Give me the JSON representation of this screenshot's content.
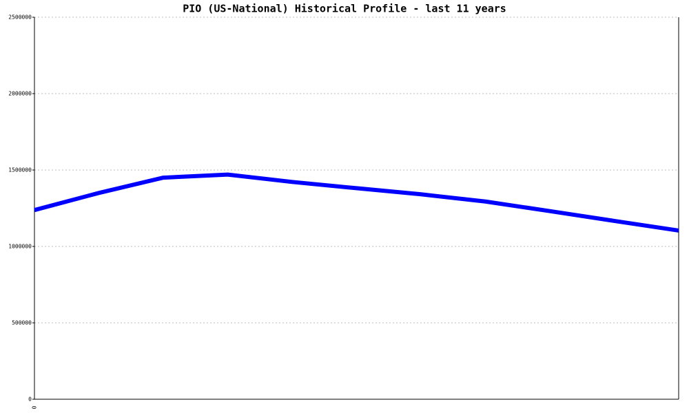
{
  "chart_data": {
    "type": "line",
    "title": "PIO (US-National) Historical Profile - last 11 years",
    "categories": [
      "0",
      null,
      null,
      null,
      null,
      null,
      null,
      null,
      null,
      null,
      null
    ],
    "series": [
      {
        "name": "PIO",
        "color": "#0000ff",
        "values": [
          1238000,
          1350000,
          1450000,
          1470000,
          1422000,
          1381000,
          1341000,
          1294000,
          1231000,
          1167000,
          1104000
        ]
      }
    ],
    "ylim": [
      0,
      2500000
    ],
    "yticks": [
      0,
      500000,
      1000000,
      1500000,
      2000000,
      2500000
    ],
    "grid": true
  }
}
